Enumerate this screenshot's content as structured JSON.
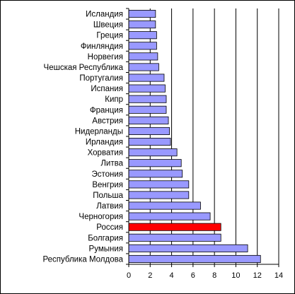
{
  "chart_data": {
    "type": "bar",
    "orientation": "horizontal",
    "categories": [
      "Исландия",
      "Швеция",
      "Греция",
      "Финляндия",
      "Норвегия",
      "Чешская Республика",
      "Португалия",
      "Испания",
      "Кипр",
      "Франция",
      "Австрия",
      "Нидерланды",
      "Ирландия",
      "Хорватия",
      "Литва",
      "Эстония",
      "Венгрия",
      "Польша",
      "Латвия",
      "Черногория",
      "Россия",
      "Болгария",
      "Румыния",
      "Республика Молдова"
    ],
    "values": [
      2.5,
      2.5,
      2.6,
      2.6,
      2.7,
      2.8,
      3.3,
      3.4,
      3.5,
      3.5,
      3.7,
      3.8,
      3.9,
      4.5,
      4.9,
      5.0,
      5.6,
      5.6,
      6.7,
      7.6,
      8.6,
      8.6,
      11.1,
      12.3
    ],
    "xlim": [
      0,
      14
    ],
    "xticks": [
      "0",
      "2",
      "4",
      "6",
      "8",
      "10",
      "12",
      "14"
    ],
    "grid": "vertical-major",
    "highlight": "Россия",
    "colors": {
      "bar": "#9999ff",
      "highlight": "#ff0000",
      "bar_edge": "#000000",
      "grid": "#000000"
    }
  }
}
